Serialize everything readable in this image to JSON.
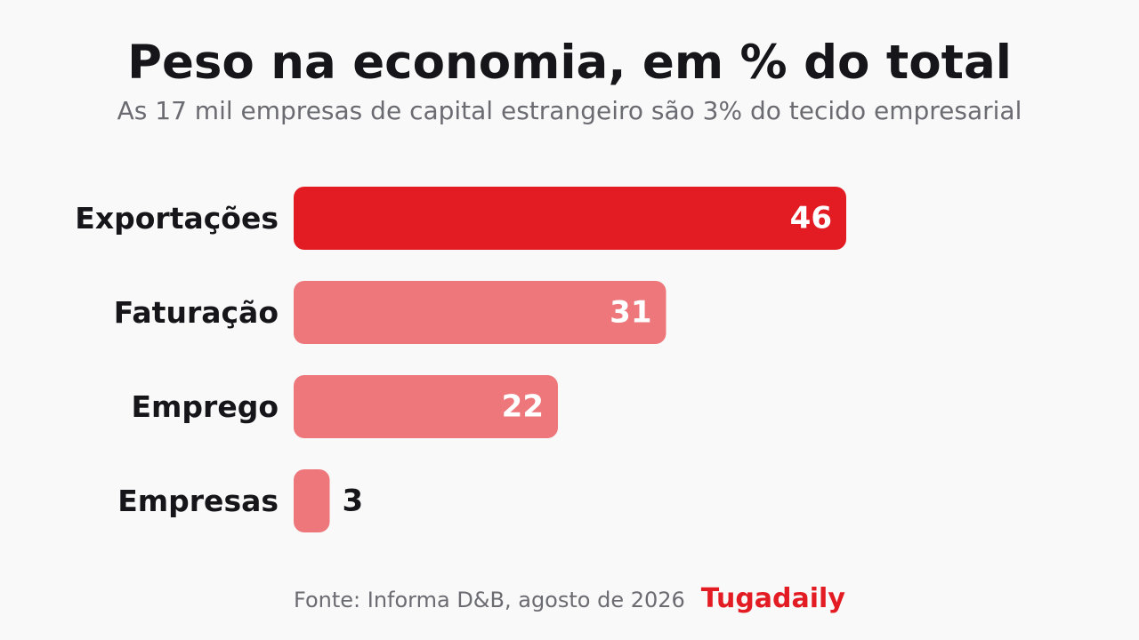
{
  "header": {
    "title": "Peso na economia, em % do total",
    "subtitle": "As 17 mil empresas de capital estrangeiro são 3% do tecido empresarial"
  },
  "chart_data": {
    "type": "bar",
    "orientation": "horizontal",
    "categories": [
      "Exportações",
      "Faturação",
      "Emprego",
      "Empresas"
    ],
    "values": [
      46,
      31,
      22,
      3
    ],
    "xlim": [
      0,
      46
    ],
    "grid": false,
    "highlight": "Exportações",
    "colors": {
      "highlight": "#e31b23",
      "default": "#ee777b"
    }
  },
  "footer": {
    "source": "Fonte: Informa D&B, agosto de 2026",
    "brand": "Tugadaily"
  },
  "colors": {
    "background": "#f9f9f9",
    "accent": "#e31b23",
    "text": "#16161a",
    "muted": "#6b6b72"
  }
}
